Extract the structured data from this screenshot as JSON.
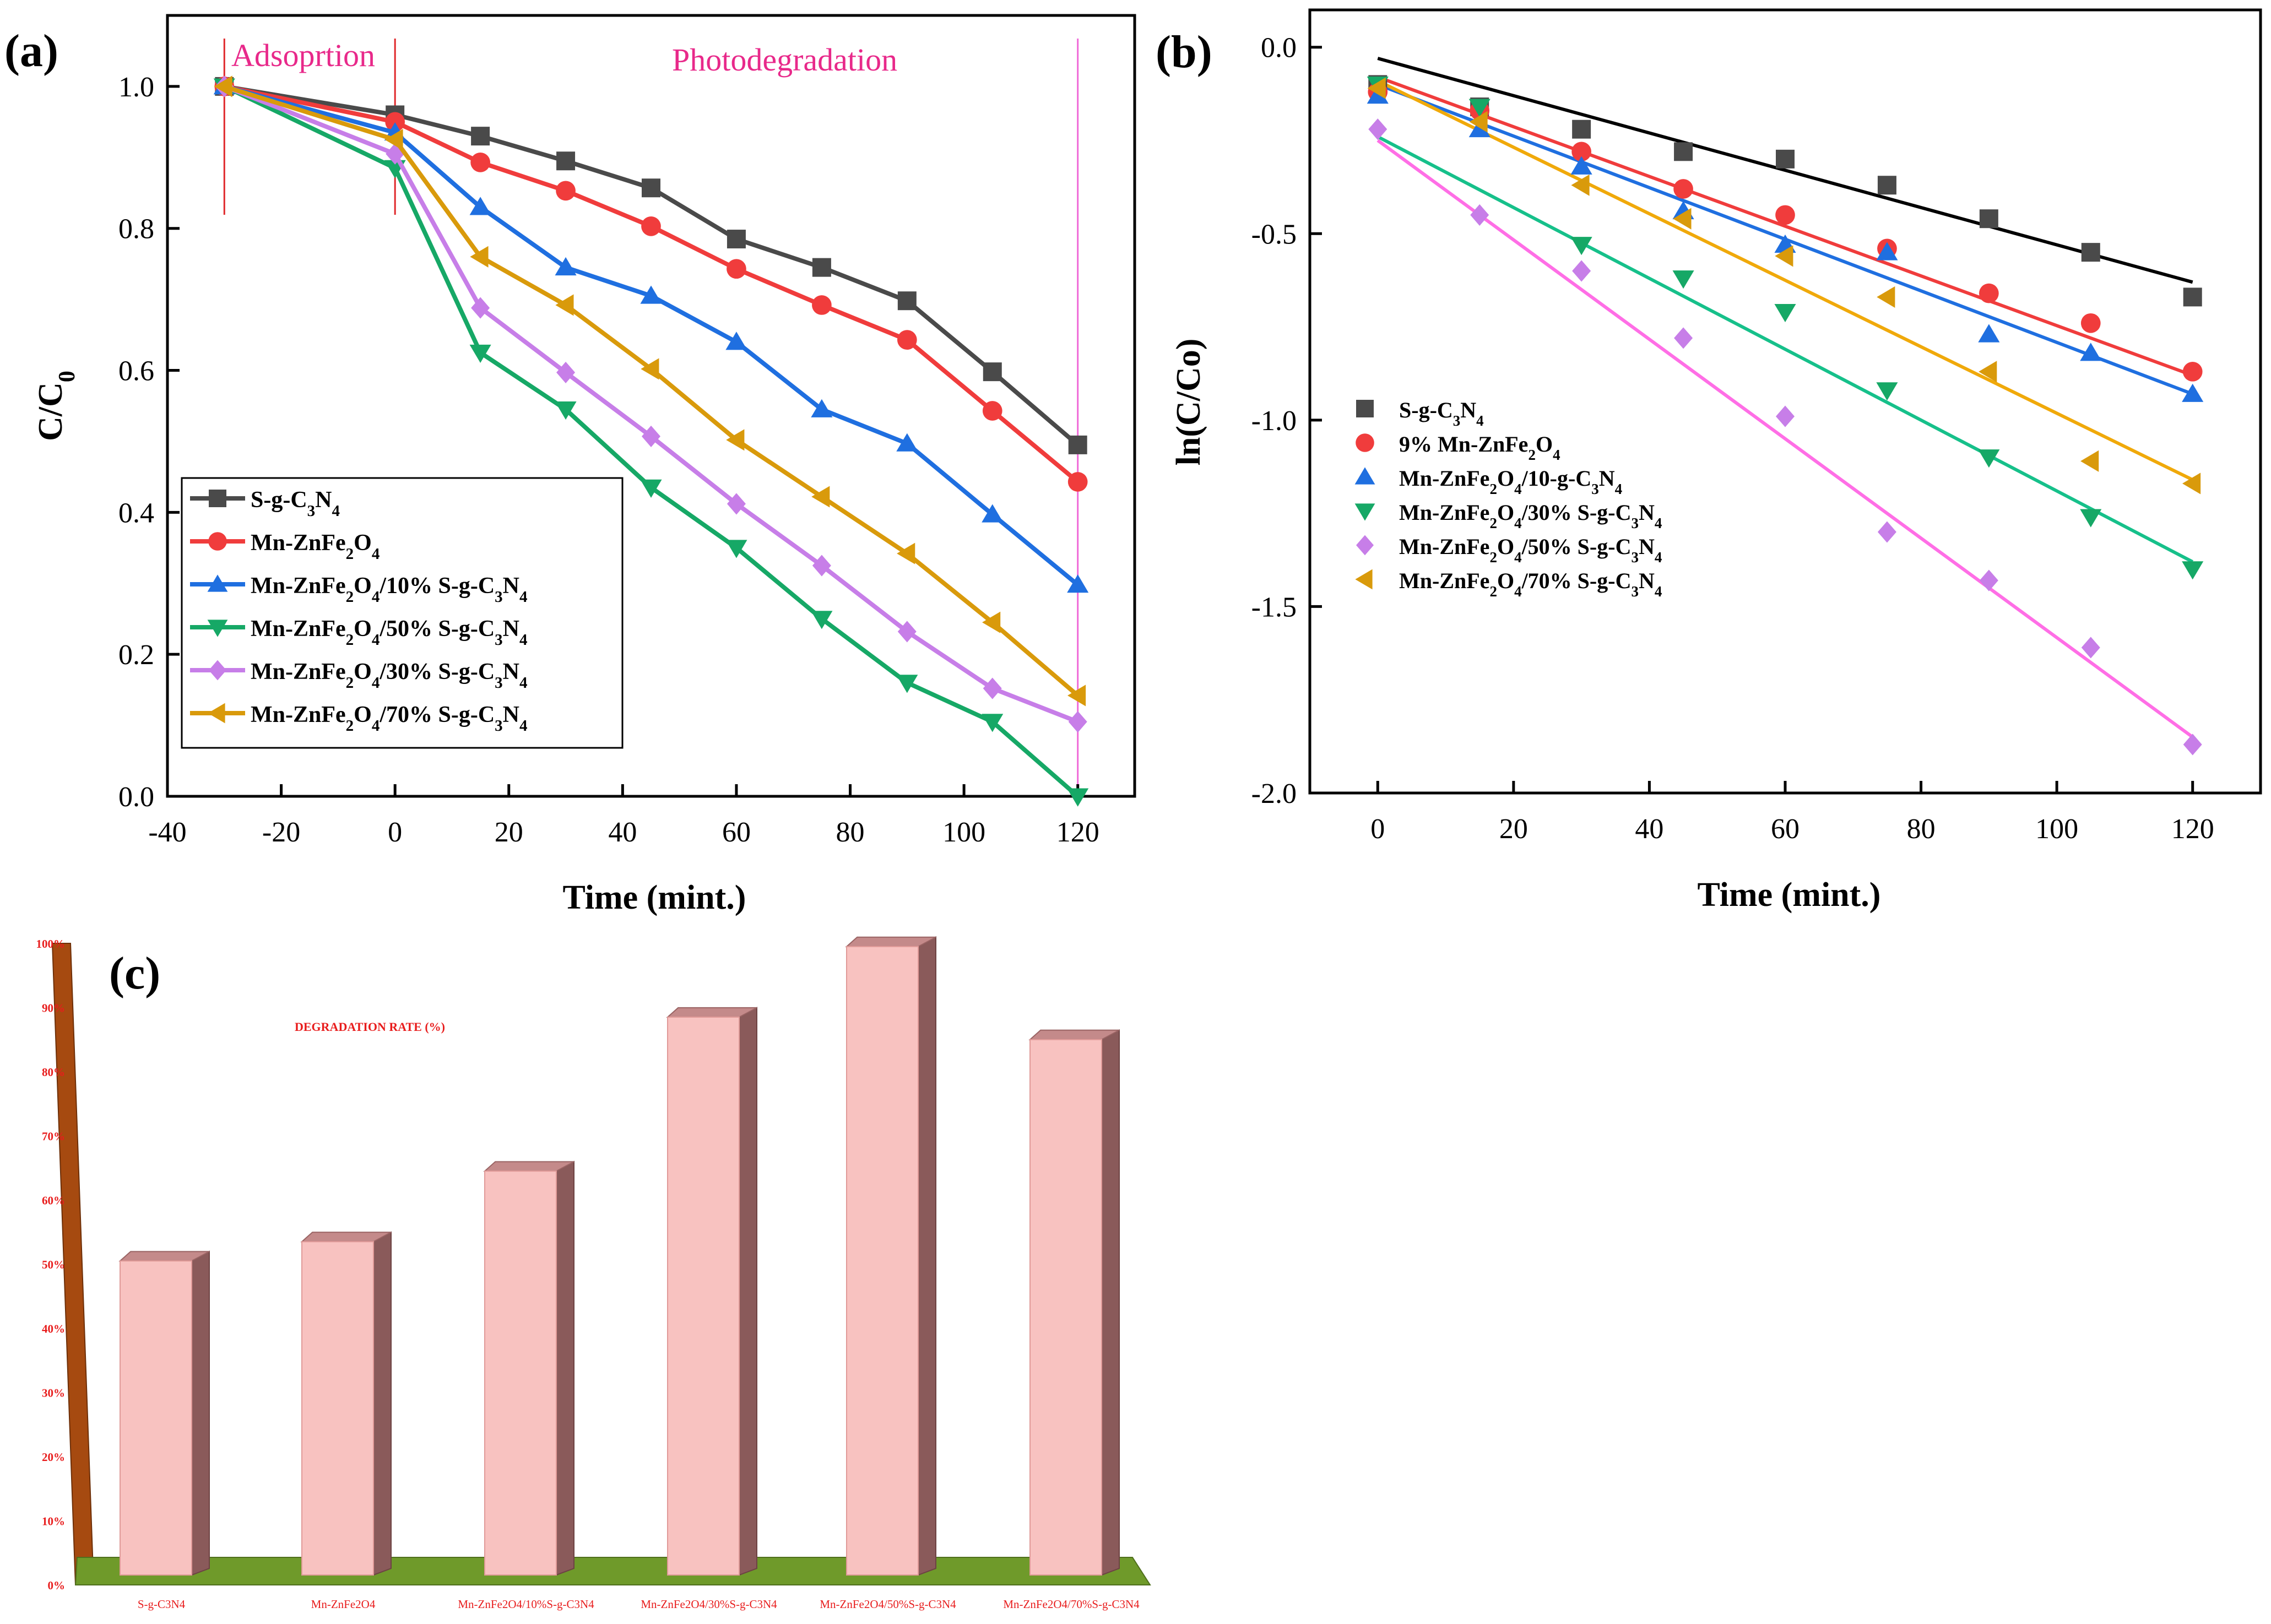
{
  "chart_data": [
    {
      "panel": "(a)",
      "type": "line",
      "xlabel": "Time (mint.)",
      "ylabel": "C/C0",
      "ylabel_main": "C/C",
      "ylabel_sub": "0",
      "xlim": [
        -40,
        130
      ],
      "ylim": [
        0.0,
        1.1
      ],
      "xticks": [
        -40,
        -20,
        0,
        20,
        40,
        60,
        80,
        100,
        120
      ],
      "xtick_labels": [
        "-40",
        "-20",
        "0",
        "20",
        "40",
        "60",
        "80",
        "100",
        "120"
      ],
      "yticks": [
        0.0,
        0.2,
        0.4,
        0.6,
        0.8,
        1.0
      ],
      "ytick_labels": [
        "0.0",
        "0.2",
        "0.4",
        "0.6",
        "0.8",
        "1.0"
      ],
      "annotations": [
        {
          "text": "Adsoprtion",
          "color": "#e8298a"
        },
        {
          "text": "Photodegradation",
          "color": "#e8298a"
        }
      ],
      "region_lines": [
        {
          "x": -30,
          "color": "#e0292c"
        },
        {
          "x": 0,
          "color": "#e0292c"
        },
        {
          "x": 120,
          "color": "#f06ad8"
        }
      ],
      "legend_position": "bottom-left",
      "x": [
        -30,
        0,
        15,
        30,
        45,
        60,
        75,
        90,
        105,
        120
      ],
      "series": [
        {
          "name": "S-g-C3N4",
          "base": "S-g-C",
          "s1": "3",
          "mid": "N",
          "s2": "4",
          "tail": "",
          "color": "#4a4a4a",
          "marker": "square",
          "values": [
            1.0,
            0.96,
            0.93,
            0.895,
            0.857,
            0.785,
            0.745,
            0.698,
            0.598,
            0.495
          ]
        },
        {
          "name": "Mn-ZnFe2O4",
          "base": "Mn-ZnFe",
          "s1": "2",
          "mid": "O",
          "s2": "4",
          "tail": "",
          "color": "#f03c3c",
          "marker": "circle",
          "values": [
            1.0,
            0.95,
            0.893,
            0.853,
            0.803,
            0.743,
            0.692,
            0.643,
            0.543,
            0.443
          ]
        },
        {
          "name": "Mn-ZnFe2O4/10% S-g-C3N4",
          "base": "Mn-ZnFe",
          "s1": "2",
          "mid": "O",
          "s2": "4",
          "tail": "/10% S-g-C",
          "t1": "3",
          "tmid": "N",
          "t2": "4",
          "color": "#1f6fe0",
          "marker": "triangle-up",
          "values": [
            1.0,
            0.935,
            0.83,
            0.745,
            0.705,
            0.64,
            0.545,
            0.497,
            0.397,
            0.298
          ]
        },
        {
          "name": "Mn-ZnFe2O4/50% S-g-C3N4",
          "base": "Mn-ZnFe",
          "s1": "2",
          "mid": "O",
          "s2": "4",
          "tail": "/50% S-g-C",
          "t1": "3",
          "tmid": "N",
          "t2": "4",
          "color": "#16a866",
          "marker": "triangle-down",
          "values": [
            1.0,
            0.885,
            0.625,
            0.545,
            0.435,
            0.35,
            0.25,
            0.16,
            0.105,
            0.0
          ]
        },
        {
          "name": "Mn-ZnFe2O4/30% S-g-C3N4",
          "base": "Mn-ZnFe",
          "s1": "2",
          "mid": "O",
          "s2": "4",
          "tail": "/30% S-g-C",
          "t1": "3",
          "tmid": "N",
          "t2": "4",
          "color": "#c77ee8",
          "marker": "diamond",
          "values": [
            1.0,
            0.905,
            0.688,
            0.597,
            0.507,
            0.412,
            0.325,
            0.232,
            0.152,
            0.105
          ]
        },
        {
          "name": "Mn-ZnFe2O4/70% S-g-C3N4",
          "base": "Mn-ZnFe",
          "s1": "2",
          "mid": "O",
          "s2": "4",
          "tail": "/70% S-g-C",
          "t1": "3",
          "tmid": "N",
          "t2": "4",
          "color": "#d99a0b",
          "marker": "triangle-left",
          "values": [
            1.0,
            0.925,
            0.76,
            0.692,
            0.602,
            0.502,
            0.422,
            0.342,
            0.245,
            0.142
          ]
        }
      ]
    },
    {
      "panel": "(b)",
      "type": "scatter",
      "xlabel": "Time (mint.)",
      "ylabel": "ln(C/Co)",
      "xlim": [
        -10,
        130
      ],
      "ylim": [
        -2.0,
        0.1
      ],
      "xticks": [
        0,
        20,
        40,
        60,
        80,
        100,
        120
      ],
      "xtick_labels": [
        "0",
        "20",
        "40",
        "60",
        "80",
        "100",
        "120"
      ],
      "yticks": [
        0.0,
        -0.5,
        -1.0,
        -1.5,
        -2.0
      ],
      "ytick_labels": [
        "0.0",
        "-0.5",
        "-1.0",
        "-1.5",
        "-2.0"
      ],
      "legend_position": "middle-left",
      "x": [
        0,
        15,
        30,
        45,
        60,
        75,
        90,
        105,
        120
      ],
      "series": [
        {
          "name": "S-g-C3N4",
          "base": "S-g-C",
          "s1": "3",
          "mid": "N",
          "s2": "4",
          "tail": "",
          "color": "#4a4a4a",
          "line_color": "#000000",
          "marker": "square",
          "values": [
            -0.1,
            -0.16,
            -0.22,
            -0.28,
            -0.3,
            -0.37,
            -0.46,
            -0.55,
            -0.67
          ],
          "fit": [
            -0.03,
            -0.63
          ]
        },
        {
          "name": "9% Mn-ZnFe2O4",
          "base": "9% Mn-ZnFe",
          "s1": "2",
          "mid": "O",
          "s2": "4",
          "tail": "",
          "color": "#f03c3c",
          "line_color": "#f03c3c",
          "marker": "circle",
          "values": [
            -0.12,
            -0.17,
            -0.28,
            -0.38,
            -0.45,
            -0.54,
            -0.66,
            -0.74,
            -0.87
          ],
          "fit": [
            -0.08,
            -0.88
          ]
        },
        {
          "name": "Mn-ZnFe2O4/10-g-C3N4",
          "base": "Mn-ZnFe",
          "s1": "2",
          "mid": "O",
          "s2": "4",
          "tail": "/10-g-C",
          "t1": "3",
          "tmid": "N",
          "t2": "4",
          "color": "#1f6fe0",
          "line_color": "#1f6fe0",
          "marker": "triangle-up",
          "values": [
            -0.13,
            -0.22,
            -0.32,
            -0.44,
            -0.53,
            -0.55,
            -0.77,
            -0.82,
            -0.93
          ],
          "fit": [
            -0.1,
            -0.93
          ]
        },
        {
          "name": "Mn-ZnFe2O4/30% S-g-C3N4",
          "base": "Mn-ZnFe",
          "s1": "2",
          "mid": "O",
          "s2": "4",
          "tail": "/30% S-g-C",
          "t1": "3",
          "tmid": "N",
          "t2": "4",
          "color": "#16a866",
          "line_color": "#16c08a",
          "marker": "triangle-down",
          "values": [
            -0.1,
            -0.16,
            -0.53,
            -0.62,
            -0.71,
            -0.92,
            -1.1,
            -1.26,
            -1.4
          ],
          "fit": [
            -0.24,
            -1.38
          ]
        },
        {
          "name": "Mn-ZnFe2O4/50% S-g-C3N4",
          "base": "Mn-ZnFe",
          "s1": "2",
          "mid": "O",
          "s2": "4",
          "tail": "/50% S-g-C",
          "t1": "3",
          "tmid": "N",
          "t2": "4",
          "color": "#c77ee8",
          "line_color": "#ff6ee6",
          "marker": "diamond",
          "values": [
            -0.22,
            -0.45,
            -0.6,
            -0.78,
            -0.99,
            -1.3,
            -1.43,
            -1.61,
            -1.87
          ],
          "fit": [
            -0.25,
            -1.85
          ]
        },
        {
          "name": "Mn-ZnFe2O4/70% S-g-C3N4",
          "base": "Mn-ZnFe",
          "s1": "2",
          "mid": "O",
          "s2": "4",
          "tail": "/70% S-g-C",
          "t1": "3",
          "tmid": "N",
          "t2": "4",
          "color": "#d99a0b",
          "line_color": "#f0a90a",
          "marker": "triangle-left",
          "values": [
            -0.11,
            -0.2,
            -0.37,
            -0.46,
            -0.56,
            -0.67,
            -0.87,
            -1.11,
            -1.17
          ],
          "fit": [
            -0.09,
            -1.16
          ]
        }
      ]
    },
    {
      "panel": "(c)",
      "type": "bar",
      "title": "DEGRADATION RATE (%)",
      "categories": [
        "S-g-C3N4",
        "Mn-ZnFe2O4",
        "Mn-ZnFe2O4/10%S-g-C3N4",
        "Mn-ZnFe2O4/30%S-g-C3N4",
        "Mn-ZnFe2O4/50%S-g-C3N4",
        "Mn-ZnFe2O4/70%S-g-C3N4"
      ],
      "values": [
        50.5,
        53.5,
        64.5,
        88.5,
        99.5,
        85.0
      ],
      "ylim": [
        0,
        100
      ],
      "yticks": [
        0,
        10,
        20,
        30,
        40,
        50,
        60,
        70,
        80,
        90,
        100
      ],
      "ytick_labels": [
        "0%",
        "10%",
        "20%",
        "30%",
        "40%",
        "50%",
        "60%",
        "70%",
        "80%",
        "90%",
        "100%"
      ],
      "bar_color": "#f8c2c0",
      "floor_color": "#6f9a2a",
      "wall_color": "#a64a10",
      "label_color": "#e81c1c"
    }
  ]
}
